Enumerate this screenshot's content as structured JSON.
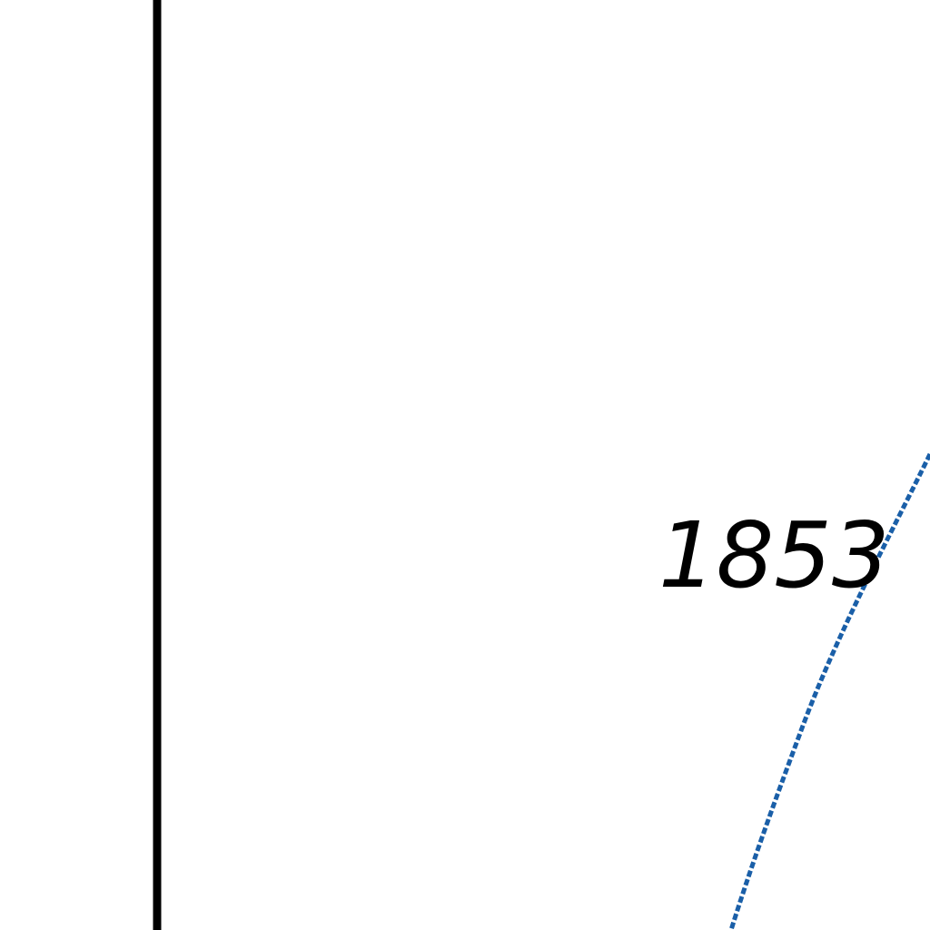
{
  "map": {
    "elevation_label": "1853",
    "colors": {
      "background": "#ffffff",
      "boundary_line": "#000000",
      "contour_line": "#1a5fa8",
      "label": "#000000"
    },
    "features": [
      {
        "kind": "boundary-line",
        "style": "solid",
        "color_key": "boundary_line"
      },
      {
        "kind": "contour-line",
        "style": "dashed",
        "color_key": "contour_line"
      }
    ]
  }
}
